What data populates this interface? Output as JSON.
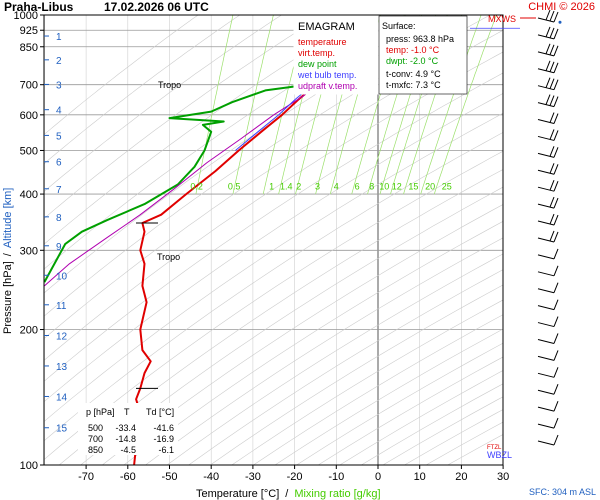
{
  "header": {
    "station": "Praha-Libus",
    "datetime": "17.02.2026 06 UTC",
    "copyright": "CHMI © 2026"
  },
  "legend": {
    "title": "EMAGRAM",
    "items": [
      {
        "label": "temperature",
        "color": "#e00000"
      },
      {
        "label": "virt.temp.",
        "color": "#e00000"
      },
      {
        "label": "dew point",
        "color": "#00a000"
      },
      {
        "label": "wet bulb temp.",
        "color": "#4040ff"
      },
      {
        "label": "udpraft v.temp.",
        "color": "#b000b0"
      }
    ]
  },
  "surface": {
    "title": "Surface:",
    "press": "press: 963.8 hPa",
    "temp": "temp: -1.0 °C",
    "dwpt": "dwpt: -2.0 °C",
    "tconv": "t-conv: 4.9 °C",
    "tmxfc": "t-mxfc: 7.3 °C"
  },
  "table": {
    "headers": [
      "p [hPa]",
      "T",
      "Td [°C]"
    ],
    "rows": [
      [
        "500",
        "-33.4",
        "-41.6"
      ],
      [
        "700",
        "-14.8",
        "-16.9"
      ],
      [
        "850",
        "-4.5",
        "-6.1"
      ]
    ]
  },
  "labels": {
    "xlabel": "Temperature [°C]",
    "xlabel_sep": "/",
    "xlabel_mix": "Mixing ratio [g/kg]",
    "ylabel_p": "Pressure [hPa]",
    "ylabel_sep": "/",
    "ylabel_alt": "Altitude [km]",
    "sfc": "SFC: 304 m ASL",
    "tropo": "Tropo",
    "mxws": "MXWS",
    "wbzl": "WBZL",
    "ftzl": "FTZL"
  },
  "chart_data": {
    "type": "line",
    "x_axis": {
      "label": "Temperature [°C]",
      "range": [
        -80,
        30
      ],
      "ticks": [
        -70,
        -60,
        -50,
        -40,
        -30,
        -20,
        -10,
        0,
        10,
        20,
        30
      ]
    },
    "y_axis": {
      "label": "Pressure [hPa]",
      "scale": "log",
      "range": [
        1000,
        100
      ],
      "ticks": [
        100,
        200,
        300,
        400,
        500,
        600,
        700,
        850,
        925,
        1000
      ]
    },
    "altitude_ticks_km": [
      1,
      2,
      3,
      4,
      5,
      6,
      7,
      8,
      9,
      10,
      11,
      12,
      13,
      14,
      15
    ],
    "altitude_tick_pressures": [
      898,
      795,
      701,
      616,
      540,
      472,
      411,
      356,
      307,
      264,
      227,
      194,
      166,
      142,
      121
    ],
    "mixing_ratio_labels": [
      "0.2",
      "0.5",
      "1",
      "1.4",
      "2",
      "3",
      "4",
      "6",
      "8",
      "10",
      "12",
      "15",
      "20",
      "25"
    ],
    "mixing_ratio_label_x": [
      -43.5,
      -34.5,
      -25.5,
      -22,
      -19,
      -14.5,
      -10,
      -5,
      -1.5,
      1.5,
      4.5,
      8.5,
      12.5,
      16.5
    ],
    "mixing_ratio_label_pressure": 405,
    "tropopause_pressures": [
      148,
      345
    ],
    "series": [
      {
        "name": "temperature",
        "color": "#e00000",
        "points": [
          [
            -1.0,
            963.8
          ],
          [
            -3.0,
            925
          ],
          [
            -4.5,
            850
          ],
          [
            -8,
            800
          ],
          [
            -11,
            750
          ],
          [
            -14.8,
            700
          ],
          [
            -19,
            650
          ],
          [
            -23,
            600
          ],
          [
            -28,
            550
          ],
          [
            -33.4,
            500
          ],
          [
            -39,
            450
          ],
          [
            -46,
            400
          ],
          [
            -52,
            360
          ],
          [
            -56.5,
            345
          ],
          [
            -56,
            330
          ],
          [
            -57,
            300
          ],
          [
            -56,
            280
          ],
          [
            -56.5,
            250
          ],
          [
            -55.5,
            230
          ],
          [
            -57,
            200
          ],
          [
            -56.5,
            180
          ],
          [
            -54.5,
            170
          ],
          [
            -56,
            160
          ],
          [
            -57,
            148
          ],
          [
            -58,
            140
          ],
          [
            -57,
            130
          ],
          [
            -58.5,
            120
          ],
          [
            -58,
            110
          ],
          [
            -58.5,
            100
          ]
        ]
      },
      {
        "name": "dew point",
        "color": "#00a000",
        "points": [
          [
            -2.0,
            963.8
          ],
          [
            -4.0,
            925
          ],
          [
            -6.1,
            850
          ],
          [
            -9,
            800
          ],
          [
            -12,
            750
          ],
          [
            -16.9,
            700
          ],
          [
            -27,
            680
          ],
          [
            -35,
            640
          ],
          [
            -40,
            610
          ],
          [
            -50,
            590
          ],
          [
            -37,
            580
          ],
          [
            -42,
            570
          ],
          [
            -40,
            550
          ],
          [
            -41.6,
            500
          ],
          [
            -44,
            460
          ],
          [
            -48,
            420
          ],
          [
            -56,
            380
          ],
          [
            -65,
            350
          ],
          [
            -71,
            330
          ],
          [
            -75,
            310
          ],
          [
            -80,
            255
          ]
        ]
      },
      {
        "name": "udpraft v.temp.",
        "color": "#b000b0",
        "points": [
          [
            -1.0,
            963.8
          ],
          [
            -2.3,
            925
          ],
          [
            -5.5,
            850
          ],
          [
            -9,
            780
          ],
          [
            -13,
            720
          ],
          [
            -18,
            660
          ],
          [
            -25,
            600
          ],
          [
            -33,
            530
          ],
          [
            -41,
            470
          ],
          [
            -49,
            410
          ],
          [
            -57,
            360
          ],
          [
            -65,
            320
          ],
          [
            -74,
            280
          ],
          [
            -80,
            250
          ]
        ]
      }
    ],
    "wind_barbs_count": 26
  }
}
